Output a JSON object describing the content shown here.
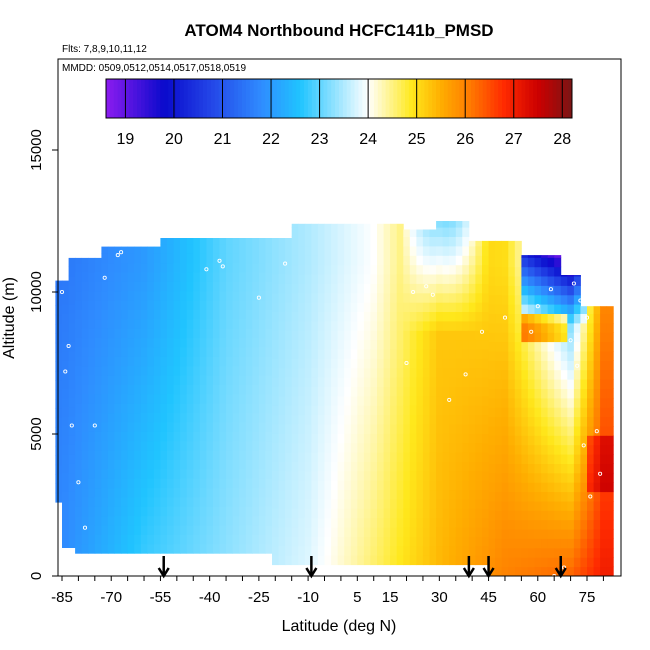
{
  "chart_data": {
    "type": "heatmap",
    "title": "ATOM4 Northbound HCFC141b_PMSD",
    "subtitle_flights": "Flts: 7,8,9,10,11,12",
    "subtitle_dates": "MMDD: 0509,0512,0514,0517,0518,0519",
    "xlabel": "Latitude (deg N)",
    "ylabel": "Altitude (m)",
    "xlim": [
      -88,
      84
    ],
    "ylim": [
      0,
      17500
    ],
    "x_ticks": [
      -85,
      -70,
      -55,
      -40,
      -25,
      -10,
      5,
      15,
      30,
      45,
      60,
      75
    ],
    "x_tick_labels": [
      "-85",
      "-70",
      "-55",
      "-40",
      "-25",
      "-10",
      "5",
      "15",
      "30",
      "45",
      "60",
      "75"
    ],
    "y_ticks": [
      0,
      5000,
      10000,
      15000
    ],
    "y_tick_labels": [
      "0",
      "5000",
      "10000",
      "15000"
    ],
    "colorbar": {
      "min": 18.6,
      "max": 28.2,
      "ticks": [
        19,
        20,
        21,
        22,
        23,
        24,
        25,
        26,
        27,
        28
      ],
      "tick_labels": [
        "19",
        "20",
        "21",
        "22",
        "23",
        "24",
        "25",
        "26",
        "27",
        "28"
      ],
      "colors": [
        "#8c1cf0",
        "#0a0acc",
        "#2448e8",
        "#2f8cff",
        "#20c4ff",
        "#ffffff",
        "#ffe81c",
        "#ffae00",
        "#ff7a00",
        "#ff2a00",
        "#cc0000",
        "#7a1515"
      ]
    },
    "profile_arrows_lat": [
      -54,
      -9,
      39,
      45,
      67
    ],
    "grid": false,
    "field_description_lat_bands": [
      {
        "lat": -85,
        "value_low": 21.8,
        "value_high": 21.5
      },
      {
        "lat": -60,
        "value_low": 22.8,
        "value_high": 22.0
      },
      {
        "lat": -35,
        "value_low": 23.3,
        "value_high": 23.0
      },
      {
        "lat": -10,
        "value_low": 23.8,
        "value_high": 23.5
      },
      {
        "lat": 10,
        "value_low": 24.6,
        "value_high": 24.0
      },
      {
        "lat": 30,
        "value_low": 25.4,
        "value_high": 25.2
      },
      {
        "lat": 50,
        "value_low": 26.0,
        "value_high": 25.0
      },
      {
        "lat": 70,
        "value_low": 26.3,
        "value_high": 22.5
      },
      {
        "lat": 80,
        "value_low": 27.0,
        "value_high": 25.8
      }
    ]
  }
}
